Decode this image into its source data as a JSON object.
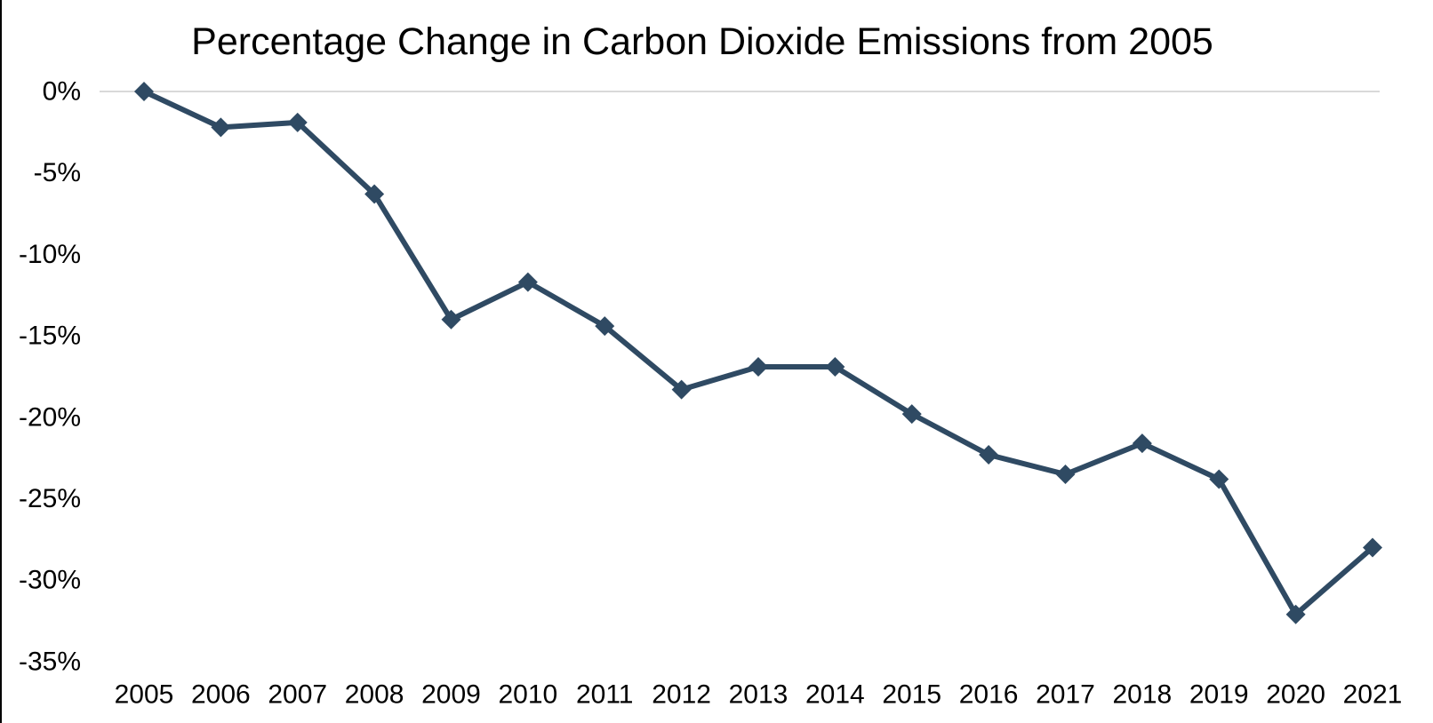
{
  "page": {
    "background_color": "#FFFFFF",
    "left_edge_border_color": "#000000"
  },
  "chart_data": {
    "type": "line",
    "title": "Percentage Change in Carbon Dioxide Emissions from 2005",
    "xlabel": "",
    "ylabel": "",
    "categories": [
      "2005",
      "2006",
      "2007",
      "2008",
      "2009",
      "2010",
      "2011",
      "2012",
      "2013",
      "2014",
      "2015",
      "2016",
      "2017",
      "2018",
      "2019",
      "2020",
      "2021"
    ],
    "series": [
      {
        "name": "Percentage change in CO2 emissions from 2005",
        "values": [
          0.0,
          -2.2,
          -1.9,
          -6.3,
          -14.0,
          -11.7,
          -14.4,
          -18.3,
          -16.9,
          -16.9,
          -19.8,
          -22.3,
          -23.5,
          -21.6,
          -23.8,
          -32.1,
          -28.0
        ]
      }
    ],
    "ylim": [
      -35,
      0
    ],
    "ytick_step": 5,
    "ytick_labels": [
      "0%",
      "-5%",
      "-10%",
      "-15%",
      "-20%",
      "-25%",
      "-30%",
      "-35%"
    ],
    "gridlines": "horizontal line at 0% only",
    "legend": "none",
    "marker_shape": "diamond",
    "line_color": "#2F4A63",
    "marker_color": "#2F4A63",
    "gridline_color": "#D9D9D9",
    "text_color": "#000000"
  }
}
